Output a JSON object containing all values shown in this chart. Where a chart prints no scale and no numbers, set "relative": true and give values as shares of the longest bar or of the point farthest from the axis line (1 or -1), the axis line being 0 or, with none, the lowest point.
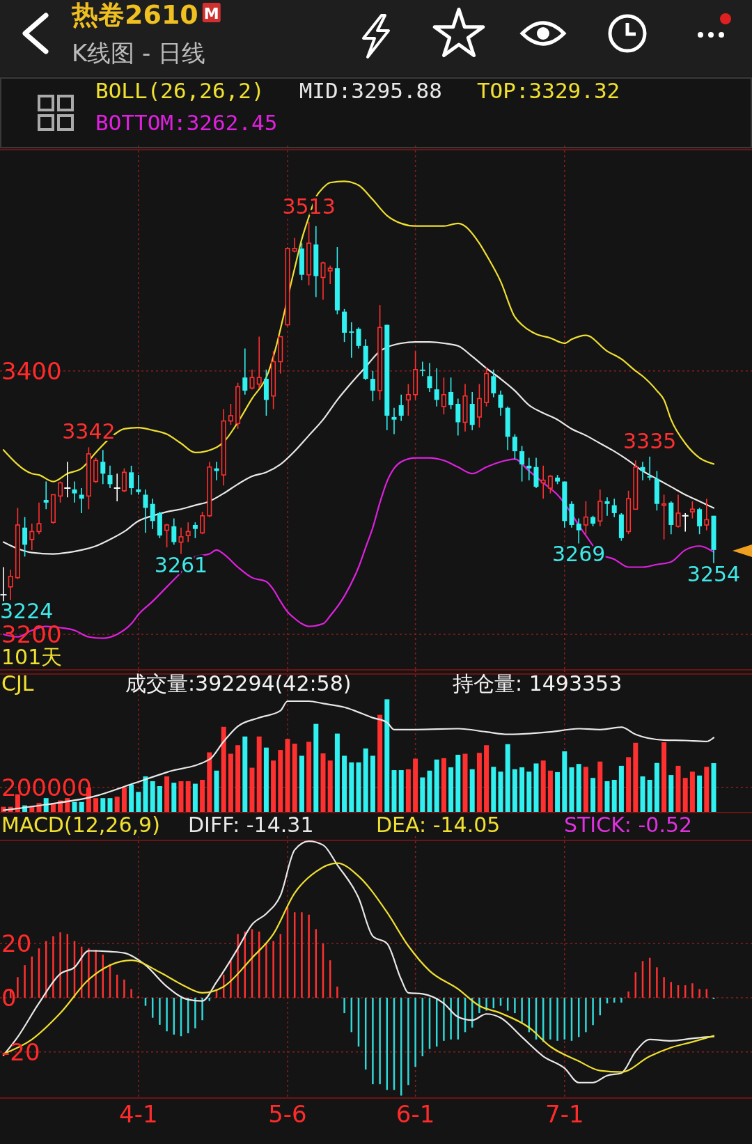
{
  "chart_data": [
    {
      "type": "candlestick",
      "title": "热卷2610",
      "subtitle": "K线图 - 日线",
      "legend_title": "BOLL(26,26,2)",
      "legend": "top",
      "grid": true,
      "tick_labels": "y",
      "categories": [
        null,
        null,
        null,
        null,
        null,
        null,
        null,
        null,
        null,
        null,
        null,
        null,
        null,
        null,
        null,
        null,
        null,
        null,
        null,
        null,
        null,
        null,
        null,
        null,
        null,
        null,
        null,
        null,
        null,
        null,
        null,
        null,
        null,
        null,
        null,
        null,
        null,
        null,
        null,
        null,
        null,
        null,
        null,
        null,
        null,
        null,
        null,
        null,
        null,
        null,
        null,
        null,
        null,
        null,
        null,
        null,
        null,
        null,
        null,
        null,
        null,
        null,
        null,
        null,
        null,
        null,
        null,
        null,
        null,
        null,
        null,
        null,
        null,
        null,
        null,
        null,
        null,
        null,
        null,
        null,
        null,
        null,
        null,
        null,
        null,
        null,
        null,
        null,
        null,
        null,
        null,
        null,
        null,
        null,
        null,
        null,
        null,
        null,
        null,
        null,
        null
      ],
      "ylim": [
        3173,
        3568
      ],
      "yticks": [
        3200,
        3400
      ],
      "ohlc": [
        [
          3230,
          3251,
          3224,
          3230
        ],
        [
          3236,
          3249,
          3226,
          3244
        ],
        [
          3243,
          3296,
          3242,
          3283
        ],
        [
          3281,
          3289,
          3259,
          3268
        ],
        [
          3272,
          3284,
          3264,
          3278
        ],
        [
          3278,
          3300,
          3276,
          3284
        ],
        [
          3302,
          3316,
          3295,
          3300
        ],
        [
          3285,
          3306,
          3284,
          3306
        ],
        [
          3305,
          3316,
          3300,
          3315
        ],
        [
          3311,
          3331,
          3304,
          3311
        ],
        [
          3310,
          3316,
          3300,
          3307
        ],
        [
          3306,
          3311,
          3292,
          3303
        ],
        [
          3305,
          3342,
          3295,
          3337
        ],
        [
          3316,
          3334,
          3315,
          3332
        ],
        [
          3331,
          3340,
          3314,
          3322
        ],
        [
          3321,
          3328,
          3311,
          3314
        ],
        [
          3311,
          3322,
          3301,
          3311
        ],
        [
          3309,
          3326,
          3308,
          3323
        ],
        [
          3323,
          3328,
          3306,
          3311
        ],
        [
          3310,
          3321,
          3306,
          3308
        ],
        [
          3306,
          3310,
          3277,
          3296
        ],
        [
          3299,
          3303,
          3280,
          3286
        ],
        [
          3292,
          3293,
          3273,
          3275
        ],
        [
          3279,
          3284,
          3266,
          3283
        ],
        [
          3282,
          3288,
          3268,
          3270
        ],
        [
          3270,
          3281,
          3261,
          3274
        ],
        [
          3275,
          3285,
          3270,
          3278
        ],
        [
          3283,
          3285,
          3273,
          3280
        ],
        [
          3277,
          3293,
          3276,
          3290
        ],
        [
          3290,
          3331,
          3289,
          3327
        ],
        [
          3326,
          3331,
          3317,
          3324
        ],
        [
          3321,
          3371,
          3313,
          3362
        ],
        [
          3362,
          3375,
          3359,
          3366
        ],
        [
          3360,
          3391,
          3356,
          3388
        ],
        [
          3395,
          3417,
          3382,
          3385
        ],
        [
          3387,
          3401,
          3386,
          3395
        ],
        [
          3390,
          3426,
          3387,
          3395
        ],
        [
          3394,
          3401,
          3366,
          3378
        ],
        [
          3381,
          3415,
          3371,
          3407
        ],
        [
          3407,
          3426,
          3398,
          3426
        ],
        [
          3435,
          3494,
          3434,
          3493
        ],
        [
          3491,
          3501,
          3490,
          3493
        ],
        [
          3493,
          3497,
          3469,
          3473
        ],
        [
          3473,
          3513,
          3465,
          3497
        ],
        [
          3496,
          3510,
          3456,
          3472
        ],
        [
          3471,
          3483,
          3454,
          3482
        ],
        [
          3476,
          3480,
          3466,
          3478
        ],
        [
          3478,
          3494,
          3443,
          3446
        ],
        [
          3445,
          3447,
          3422,
          3429
        ],
        [
          3430,
          3437,
          3410,
          3429
        ],
        [
          3432,
          3433,
          3417,
          3419
        ],
        [
          3419,
          3424,
          3393,
          3394
        ],
        [
          3394,
          3400,
          3377,
          3385
        ],
        [
          3385,
          3450,
          3378,
          3433
        ],
        [
          3435,
          3435,
          3355,
          3366
        ],
        [
          3365,
          3372,
          3352,
          3363
        ],
        [
          3374,
          3382,
          3362,
          3366
        ],
        [
          3378,
          3390,
          3366,
          3382
        ],
        [
          3382,
          3415,
          3378,
          3401
        ],
        [
          3401,
          3407,
          3396,
          3400
        ],
        [
          3396,
          3406,
          3384,
          3387
        ],
        [
          3386,
          3402,
          3373,
          3378
        ],
        [
          3373,
          3395,
          3367,
          3382
        ],
        [
          3384,
          3395,
          3371,
          3374
        ],
        [
          3375,
          3379,
          3351,
          3361
        ],
        [
          3361,
          3390,
          3354,
          3381
        ],
        [
          3375,
          3384,
          3355,
          3359
        ],
        [
          3365,
          3390,
          3357,
          3379
        ],
        [
          3376,
          3403,
          3373,
          3398
        ],
        [
          3396,
          3401,
          3380,
          3383
        ],
        [
          3382,
          3385,
          3366,
          3372
        ],
        [
          3372,
          3373,
          3340,
          3350
        ],
        [
          3350,
          3352,
          3333,
          3339
        ],
        [
          3339,
          3343,
          3316,
          3329
        ],
        [
          3328,
          3334,
          3317,
          3326
        ],
        [
          3327,
          3334,
          3311,
          3312
        ],
        [
          3315,
          3328,
          3303,
          3317
        ],
        [
          3311,
          3321,
          3307,
          3320
        ],
        [
          3319,
          3321,
          3314,
          3316
        ],
        [
          3316,
          3316,
          3281,
          3286
        ],
        [
          3299,
          3301,
          3281,
          3283
        ],
        [
          3284,
          3288,
          3269,
          3279
        ],
        [
          3283,
          3301,
          3276,
          3289
        ],
        [
          3289,
          3290,
          3282,
          3284
        ],
        [
          3286,
          3310,
          3282,
          3301
        ],
        [
          3301,
          3304,
          3290,
          3299
        ],
        [
          3298,
          3303,
          3289,
          3292
        ],
        [
          3291,
          3292,
          3271,
          3273
        ],
        [
          3278,
          3309,
          3276,
          3303
        ],
        [
          3295,
          3332,
          3295,
          3327
        ],
        [
          3327,
          3331,
          3317,
          3324
        ],
        [
          3320,
          3335,
          3317,
          3319
        ],
        [
          3318,
          3324,
          3294,
          3299
        ],
        [
          3298,
          3306,
          3272,
          3299
        ],
        [
          3300,
          3301,
          3276,
          3283
        ],
        [
          3282,
          3306,
          3281,
          3292
        ],
        [
          3290,
          3292,
          3278,
          3290
        ],
        [
          3293,
          3301,
          3288,
          3295
        ],
        [
          3295,
          3296,
          3276,
          3282
        ],
        [
          3283,
          3303,
          3279,
          3287
        ],
        [
          3290,
          3290,
          3254,
          3264
        ]
      ],
      "colors": [
        "#ffffff",
        "#ff3030",
        "#ff3030",
        "#30f0f0",
        "#ff3030",
        "#ff3030",
        "#30f0f0",
        "#ff3030",
        "#ff3030",
        "#ffffff",
        "#30f0f0",
        "#30f0f0",
        "#ff3030",
        "#ff3030",
        "#30f0f0",
        "#30f0f0",
        "#ffffff",
        "#ff3030",
        "#30f0f0",
        "#30f0f0",
        "#30f0f0",
        "#30f0f0",
        "#30f0f0",
        "#ff3030",
        "#30f0f0",
        "#ff3030",
        "#ff3030",
        "#30f0f0",
        "#ff3030",
        "#ff3030",
        "#30f0f0",
        "#ff3030",
        "#ff3030",
        "#ff3030",
        "#30f0f0",
        "#ff3030",
        "#ff3030",
        "#30f0f0",
        "#ff3030",
        "#ff3030",
        "#ff3030",
        "#ff3030",
        "#30f0f0",
        "#ff3030",
        "#30f0f0",
        "#ff3030",
        "#ff3030",
        "#30f0f0",
        "#30f0f0",
        "#30f0f0",
        "#30f0f0",
        "#30f0f0",
        "#30f0f0",
        "#ff3030",
        "#30f0f0",
        "#30f0f0",
        "#30f0f0",
        "#ff3030",
        "#ff3030",
        "#30f0f0",
        "#30f0f0",
        "#30f0f0",
        "#ff3030",
        "#30f0f0",
        "#30f0f0",
        "#ff3030",
        "#30f0f0",
        "#ff3030",
        "#ff3030",
        "#30f0f0",
        "#30f0f0",
        "#30f0f0",
        "#30f0f0",
        "#30f0f0",
        "#30f0f0",
        "#30f0f0",
        "#ff3030",
        "#ff3030",
        "#30f0f0",
        "#30f0f0",
        "#30f0f0",
        "#30f0f0",
        "#ff3030",
        "#30f0f0",
        "#ff3030",
        "#30f0f0",
        "#30f0f0",
        "#30f0f0",
        "#ff3030",
        "#ff3030",
        "#30f0f0",
        "#30f0f0",
        "#30f0f0",
        "#ff3030",
        "#30f0f0",
        "#ff3030",
        "#ffffff",
        "#ff3030",
        "#30f0f0",
        "#ff3030",
        "#30f0f0"
      ],
      "series": [
        {
          "type": "line",
          "name": "MID:3295.88",
          "color": "#e8e8e8",
          "values": [
            3270,
            null,
            3265,
            null,
            3262,
            null,
            null,
            3261,
            null,
            3262,
            null,
            3264,
            null,
            3267,
            null,
            3272,
            null,
            3278,
            null,
            3286,
            null,
            3290,
            null,
            3293,
            null,
            3295,
            null,
            3298,
            null,
            3301,
            null,
            3307,
            null,
            3314,
            null,
            3320,
            null,
            3323,
            null,
            3329,
            null,
            3339,
            null,
            3351,
            null,
            3363,
            null,
            3378,
            null,
            3391,
            null,
            3403,
            null,
            3415,
            3418,
            null,
            3421,
            null,
            3422,
            null,
            3422,
            null,
            3421,
            null,
            3419,
            null,
            3411,
            null,
            3402,
            null,
            3394,
            null,
            3385,
            null,
            3374,
            null,
            3368,
            null,
            3363,
            null,
            3356,
            null,
            3351,
            null,
            3345,
            null,
            3339,
            null,
            3332,
            null,
            3324,
            null,
            3318,
            null,
            3312,
            null,
            3306,
            null,
            3301,
            null,
            3295.88
          ]
        },
        {
          "type": "line",
          "name": "TOP:3329.32",
          "color": "#f0e030",
          "values": [
            3340,
            null,
            null,
            null,
            3322,
            3321,
            null,
            3316,
            null,
            3322,
            null,
            3326,
            null,
            3338,
            null,
            3349,
            null,
            3356,
            null,
            3357,
            null,
            3355,
            null,
            3352,
            null,
            3345,
            null,
            3338,
            null,
            null,
            3342,
            3346,
            null,
            3361,
            null,
            3379,
            null,
            3395,
            null,
            null,
            null,
            3478,
            3500,
            3517,
            3532,
            3539,
            3543,
            null,
            3544,
            null,
            3541,
            null,
            3530,
            null,
            3518,
            null,
            3512,
            null,
            3510,
            null,
            null,
            null,
            3510,
            null,
            3512,
            null,
            null,
            3497,
            3488,
            null,
            3468,
            null,
            3441,
            3435,
            null,
            3428,
            null,
            3425,
            null,
            3421,
            3424,
            null,
            3427,
            null,
            null,
            3415,
            null,
            3409,
            null,
            3400,
            3396,
            null,
            3385,
            3378,
            3363,
            null,
            3345,
            null,
            3334,
            null,
            3329.32
          ]
        },
        {
          "type": "line",
          "name": "BOTTOM:3262.45",
          "color": "#e020e0",
          "values": [
            3200,
            null,
            3198,
            null,
            3203,
            null,
            3206,
            null,
            3205,
            null,
            3203,
            null,
            3198,
            null,
            3197,
            null,
            3200,
            null,
            3208,
            3215,
            null,
            3225,
            null,
            3236,
            null,
            3247,
            null,
            3259,
            null,
            3261,
            3264,
            3261,
            null,
            3251,
            null,
            3243,
            null,
            3240,
            3234,
            3225,
            3217,
            3212,
            3208,
            3206,
            null,
            3208,
            3214,
            null,
            3229,
            null,
            3251,
            3266,
            3281,
            3300,
            3316,
            3326,
            3331,
            null,
            3334,
            null,
            3334,
            null,
            3332,
            null,
            3327,
            null,
            3322,
            null,
            3327,
            null,
            3331,
            null,
            3333,
            null,
            3324,
            null,
            3315,
            null,
            3306,
            null,
            null,
            null,
            3275,
            null,
            3261,
            null,
            3257,
            null,
            3251,
            null,
            3251,
            null,
            3253,
            null,
            3255,
            null,
            3264,
            null,
            3267,
            null,
            3262.45
          ]
        }
      ],
      "annotations": [
        "M",
        "101天",
        {
          "text": "3513",
          "y": 3513
        },
        {
          "text": "3342",
          "y": 3342
        },
        {
          "text": "3261",
          "y": 3261
        },
        {
          "text": "3269",
          "y": 3269
        },
        {
          "text": "3335",
          "y": 3335
        },
        {
          "text": "3254",
          "y": 3254
        },
        "3224"
      ]
    },
    {
      "type": "bar",
      "title": "CJL",
      "grid": true,
      "tick_labels": "y",
      "categories": [
        null,
        null,
        null,
        null,
        null,
        null,
        null,
        null,
        null,
        null,
        null,
        null,
        null,
        null,
        null,
        null,
        null,
        null,
        null,
        null,
        null,
        null,
        null,
        null,
        null,
        null,
        null,
        null,
        null,
        null,
        null,
        null,
        null,
        null,
        null,
        null,
        null,
        null,
        null,
        null,
        null,
        null,
        null,
        null,
        null,
        null,
        null,
        null,
        null,
        null,
        null,
        null,
        null,
        null,
        null,
        null,
        null,
        null,
        null,
        null,
        null,
        null,
        null,
        null,
        null,
        null,
        null,
        null,
        null,
        null,
        null,
        null,
        null,
        null,
        null,
        null,
        null,
        null,
        null,
        null,
        null,
        null,
        null,
        null,
        null,
        null,
        null,
        null,
        null,
        null,
        null,
        null,
        null,
        null,
        null,
        null,
        null,
        null,
        null,
        null,
        null
      ],
      "ylim": [
        0,
        1100000
      ],
      "yticks": [
        200000
      ],
      "series": [
        {
          "type": "bar",
          "colors": [
            "#ff3030",
            "#ff3030",
            "#ff3030",
            "#30f0f0",
            "#ff3030",
            "#ff3030",
            "#30f0f0",
            "#ff3030",
            "#ff3030",
            "#ff3030",
            "#30f0f0",
            "#30f0f0",
            "#ff3030",
            "#ff3030",
            "#30f0f0",
            "#30f0f0",
            "#ff3030",
            "#ff3030",
            "#30f0f0",
            "#30f0f0",
            "#30f0f0",
            "#30f0f0",
            "#30f0f0",
            "#ff3030",
            "#30f0f0",
            "#ff3030",
            "#ff3030",
            "#30f0f0",
            "#ff3030",
            "#ff3030",
            "#30f0f0",
            "#ff3030",
            "#ff3030",
            "#ff3030",
            "#30f0f0",
            "#ff3030",
            "#ff3030",
            "#30f0f0",
            "#ff3030",
            "#ff3030",
            "#ff3030",
            "#ff3030",
            "#30f0f0",
            "#ff3030",
            "#30f0f0",
            "#ff3030",
            "#ff3030",
            "#30f0f0",
            "#30f0f0",
            "#30f0f0",
            "#30f0f0",
            "#30f0f0",
            "#30f0f0",
            "#ff3030",
            "#30f0f0",
            "#30f0f0",
            "#30f0f0",
            "#ff3030",
            "#ff3030",
            "#30f0f0",
            "#30f0f0",
            "#30f0f0",
            "#ff3030",
            "#30f0f0",
            "#30f0f0",
            "#ff3030",
            "#30f0f0",
            "#ff3030",
            "#ff3030",
            "#30f0f0",
            "#30f0f0",
            "#30f0f0",
            "#30f0f0",
            "#30f0f0",
            "#30f0f0",
            "#30f0f0",
            "#ff3030",
            "#ff3030",
            "#30f0f0",
            "#30f0f0",
            "#30f0f0",
            "#30f0f0",
            "#ff3030",
            "#30f0f0",
            "#ff3030",
            "#30f0f0",
            "#30f0f0",
            "#30f0f0",
            "#ff3030",
            "#ff3030",
            "#30f0f0",
            "#30f0f0",
            "#30f0f0",
            "#ff3030",
            "#30f0f0",
            "#ff3030",
            "#ff3030",
            "#ff3030",
            "#30f0f0",
            "#ff3030",
            "#30f0f0"
          ],
          "values": [
            46000,
            46000,
            145000,
            57000,
            46000,
            76000,
            115000,
            76000,
            96000,
            115000,
            84000,
            84000,
            199000,
            115000,
            115000,
            115000,
            126000,
            199000,
            222000,
            164000,
            287000,
            249000,
            210000,
            287000,
            237000,
            249000,
            249000,
            229000,
            260000,
            478000,
            333000,
            681000,
            467000,
            535000,
            604000,
            356000,
            604000,
            516000,
            413000,
            497000,
            585000,
            547000,
            451000,
            562000,
            704000,
            470000,
            413000,
            627000,
            451000,
            398000,
            398000,
            509000,
            451000,
            776000,
            899000,
            337000,
            337000,
            344000,
            428000,
            279000,
            333000,
            421000,
            432000,
            359000,
            459000,
            467000,
            344000,
            474000,
            535000,
            363000,
            325000,
            543000,
            344000,
            359000,
            325000,
            390000,
            413000,
            333000,
            321000,
            486000,
            359000,
            386000,
            363000,
            275000,
            405000,
            249000,
            260000,
            371000,
            440000,
            554000,
            287000,
            260000,
            394000,
            558000,
            298000,
            371000,
            275000,
            325000,
            294000,
            363000,
            392294
          ]
        }
      ],
      "annotations": [
        "成交量:392294(42:58)"
      ]
    },
    {
      "type": "line",
      "relative": true,
      "categories": [
        null,
        null,
        null,
        null,
        null,
        null,
        null,
        null,
        null,
        null,
        null,
        null,
        null,
        null,
        null,
        null,
        null,
        null,
        null,
        null,
        null,
        null,
        null,
        null,
        null,
        null,
        null,
        null,
        null,
        null,
        null,
        null,
        null,
        null,
        null,
        null,
        null,
        null,
        null,
        null,
        null,
        null,
        null,
        null,
        null,
        null,
        null,
        null,
        null,
        null,
        null,
        null,
        null,
        null,
        null,
        null,
        null,
        null,
        null,
        null,
        null,
        null,
        null,
        null,
        null,
        null,
        null,
        null,
        null,
        null,
        null,
        null,
        null,
        null,
        null,
        null,
        null,
        null,
        null,
        null,
        null,
        null,
        null,
        null,
        null,
        null,
        null,
        null,
        null,
        null,
        null,
        null,
        null,
        null,
        null,
        null,
        null,
        null,
        null,
        null,
        null
      ],
      "series": [
        {
          "type": "line",
          "color": "#e8e8e8",
          "values": [
            0.021,
            null,
            null,
            null,
            null,
            null,
            0.072,
            null,
            null,
            null,
            null,
            null,
            null,
            0.149,
            null,
            null,
            null,
            null,
            0.255,
            null,
            null,
            null,
            null,
            0.362,
            null,
            null,
            null,
            null,
            null,
            0.477,
            null,
            0.638,
            null,
            0.774,
            null,
            null,
            0.851,
            null,
            null,
            0.915,
            1,
            null,
            null,
            1,
            null,
            0.979,
            null,
            null,
            0.945,
            null,
            null,
            null,
            0.851,
            null,
            0.809,
            0.745,
            null,
            null,
            0.745,
            null,
            null,
            null,
            null,
            null,
            0.753,
            null,
            null,
            null,
            0.724,
            null,
            null,
            0.702,
            null,
            null,
            null,
            null,
            null,
            0.724,
            null,
            null,
            null,
            0.753,
            null,
            null,
            0.745,
            null,
            null,
            0.766,
            null,
            0.702,
            null,
            null,
            null,
            0.651,
            null,
            null,
            0.647,
            null,
            null,
            0.638,
            0.672
          ]
        }
      ],
      "annotations": [
        "持仓量: 1493353"
      ]
    },
    {
      "type": "bar",
      "title": "MACD(12,26,9)",
      "legend": "top",
      "grid": true,
      "categories": [
        null,
        null,
        null,
        null,
        null,
        null,
        null,
        null,
        null,
        null,
        null,
        null,
        null,
        null,
        null,
        null,
        null,
        null,
        null,
        "4-1",
        null,
        null,
        null,
        null,
        null,
        null,
        null,
        null,
        null,
        null,
        null,
        null,
        null,
        null,
        null,
        null,
        null,
        null,
        null,
        null,
        "5-6",
        null,
        null,
        null,
        null,
        null,
        null,
        null,
        null,
        null,
        null,
        null,
        null,
        null,
        null,
        null,
        null,
        null,
        "6-1",
        null,
        null,
        null,
        null,
        null,
        null,
        null,
        null,
        null,
        null,
        null,
        null,
        null,
        null,
        null,
        null,
        null,
        null,
        null,
        null,
        "7-1",
        null,
        null,
        null,
        null,
        null,
        null,
        null,
        null,
        null,
        null,
        null,
        null,
        null,
        null,
        null,
        null,
        null,
        null,
        null,
        null,
        null
      ],
      "ylim": [
        -37,
        58
      ],
      "yticks": [
        -20,
        0,
        20
      ],
      "series": [
        {
          "type": "bar",
          "colors": [
            null,
            "#ff3030",
            "#ff3030",
            "#ff3030",
            "#ff3030",
            "#ff3030",
            "#ff3030",
            "#ff3030",
            "#ff3030",
            "#ff3030",
            "#ff3030",
            "#ff3030",
            "#ff3030",
            "#ff3030",
            "#ff3030",
            "#ff3030",
            "#ff3030",
            "#ff3030",
            "#ff3030",
            "#ff3030",
            "#30d8d8",
            "#30d8d8",
            "#30d8d8",
            "#30d8d8",
            "#30d8d8",
            "#30d8d8",
            "#30d8d8",
            "#30d8d8",
            "#30d8d8",
            "#30d8d8",
            "#ff3030",
            "#ff3030",
            "#ff3030",
            "#ff3030",
            "#ff3030",
            "#ff3030",
            "#ff3030",
            "#ff3030",
            "#ff3030",
            "#ff3030",
            "#ff3030",
            "#ff3030",
            "#ff3030",
            "#ff3030",
            "#ff3030",
            "#ff3030",
            "#ff3030",
            "#ff3030",
            "#30d8d8",
            "#30d8d8",
            "#30d8d8",
            "#30d8d8",
            "#30d8d8",
            "#30d8d8",
            "#30d8d8",
            "#30d8d8",
            "#30d8d8",
            "#30d8d8",
            "#30d8d8",
            "#30d8d8",
            "#30d8d8",
            "#30d8d8",
            "#30d8d8",
            "#30d8d8",
            "#30d8d8",
            "#30d8d8",
            "#30d8d8",
            "#30d8d8",
            "#30d8d8",
            "#30d8d8",
            "#30d8d8",
            "#30d8d8",
            "#30d8d8",
            "#30d8d8",
            "#30d8d8",
            "#30d8d8",
            "#30d8d8",
            "#30d8d8",
            "#30d8d8",
            "#30d8d8",
            "#30d8d8",
            "#30d8d8",
            "#30d8d8",
            "#30d8d8",
            "#30d8d8",
            "#30d8d8",
            "#30d8d8",
            "#30d8d8",
            "#ff3030",
            "#ff3030",
            "#ff3030",
            "#ff3030",
            "#ff3030",
            "#ff3030",
            "#ff3030",
            "#ff3030",
            "#ff3030",
            "#ff3030",
            "#ff3030",
            "#ff3030",
            "#30d8d8"
          ],
          "values": [
            null,
            3.2,
            7.6,
            12,
            15.2,
            18.2,
            20.9,
            22.7,
            24.1,
            23.5,
            20.9,
            18.8,
            18.2,
            17.7,
            15.9,
            12.4,
            8.5,
            6.7,
            3.2,
            0.5,
            -3,
            -7.4,
            -10,
            -12.4,
            -13.6,
            -14.2,
            -13.1,
            -11.3,
            -8.3,
            -1.2,
            2.8,
            8.5,
            13.8,
            23.5,
            24.4,
            25.3,
            24.4,
            20,
            20.9,
            23.5,
            33.3,
            31.5,
            31.5,
            30.6,
            25.3,
            20,
            13.8,
            4.1,
            -5.7,
            -12.7,
            -18,
            -26.5,
            -31.9,
            -31.9,
            -34,
            -34,
            -36.1,
            -32.2,
            -25.5,
            -21.6,
            -18.9,
            -18,
            -15.9,
            -15.4,
            -15.4,
            -12.7,
            -11,
            -5.7,
            -4.8,
            -3.9,
            -3,
            -4.8,
            -5.7,
            -9.2,
            -12.7,
            -15.4,
            -16.3,
            -15.4,
            -15.9,
            -15.4,
            -15.9,
            -14.5,
            -12.7,
            -10.1,
            -6.5,
            -2.1,
            -1.8,
            -1.8,
            2.3,
            9.4,
            13.5,
            14.7,
            11.2,
            7.6,
            5.8,
            4.6,
            4.6,
            5.3,
            3.2,
            3.2,
            -0.52
          ]
        },
        {
          "type": "line",
          "name": "DIFF: -14.31",
          "color": "#e8e8e8",
          "values": [
            -21.2,
            null,
            -14.5,
            null,
            null,
            -2,
            null,
            null,
            8.8,
            null,
            11.2,
            null,
            17.3,
            null,
            null,
            17,
            null,
            16.5,
            null,
            null,
            12,
            null,
            null,
            4.1,
            null,
            null,
            -0.7,
            null,
            -1.2,
            null,
            5.8,
            null,
            null,
            18.2,
            null,
            27,
            null,
            31,
            null,
            37.7,
            null,
            54.5,
            null,
            57.7,
            null,
            56.3,
            null,
            49,
            null,
            null,
            36.8,
            null,
            22.7,
            null,
            20,
            null,
            6.7,
            1.8,
            null,
            1.4,
            null,
            null,
            -2.1,
            null,
            -7.1,
            null,
            -8.3,
            null,
            -6,
            null,
            -7.4,
            null,
            null,
            -14.5,
            null,
            null,
            -21.6,
            null,
            null,
            -26,
            null,
            -31.3,
            null,
            -31.3,
            null,
            -28.7,
            null,
            -27.8,
            null,
            -19.8,
            null,
            -15.4,
            null,
            null,
            -15.9,
            null,
            null,
            -15,
            null,
            null,
            -14.31
          ]
        },
        {
          "type": "line",
          "name": "DEA: -14.05",
          "color": "#f0e030",
          "values": [
            -20.7,
            null,
            null,
            null,
            -15.4,
            null,
            null,
            null,
            -5.7,
            null,
            null,
            null,
            6.7,
            null,
            null,
            12,
            null,
            null,
            13.8,
            null,
            null,
            null,
            9.4,
            null,
            null,
            5,
            null,
            null,
            1.8,
            null,
            null,
            4.1,
            null,
            null,
            null,
            14.7,
            null,
            null,
            23.5,
            null,
            null,
            38.6,
            null,
            null,
            46.5,
            null,
            null,
            49.6,
            null,
            null,
            44.8,
            null,
            null,
            null,
            31.5,
            null,
            null,
            19.1,
            null,
            null,
            9.9,
            null,
            null,
            null,
            3.2,
            null,
            null,
            -3,
            null,
            null,
            -5.7,
            null,
            null,
            null,
            -11,
            null,
            null,
            -18,
            null,
            null,
            null,
            -23.4,
            null,
            null,
            -26.9,
            null,
            null,
            -27.4,
            null,
            null,
            null,
            -21.6,
            null,
            null,
            -18.4,
            null,
            null,
            -16.3,
            null,
            null,
            -14.05
          ]
        }
      ],
      "annotations": [
        "STICK: -0.52"
      ]
    }
  ]
}
